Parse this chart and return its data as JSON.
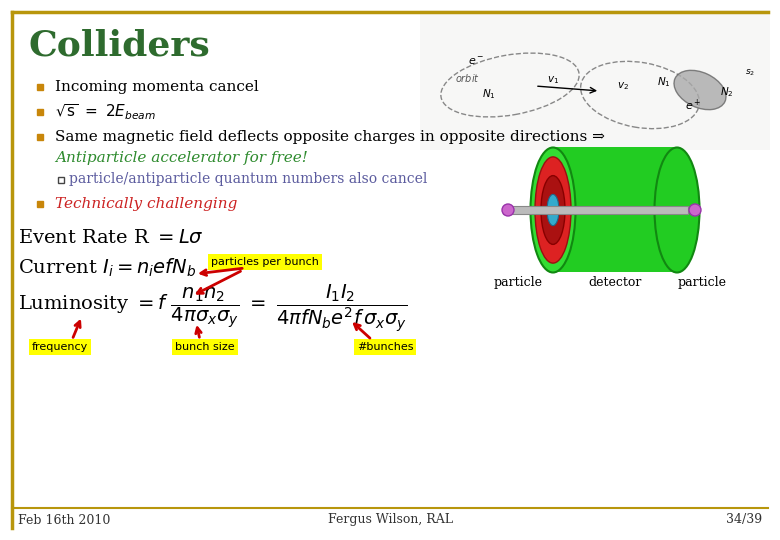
{
  "title": "Colliders",
  "title_color": "#2E6B2E",
  "title_fontsize": 26,
  "bg_color": "#FFFFFF",
  "border_color": "#B8960C",
  "bullet_color": "#C8860A",
  "bullet1": "Incoming momenta cancel",
  "bullet3": "Same magnetic field deflects opposite charges in opposite directions ⇒",
  "bullet3_italic": "Antiparticle accelerator for free!",
  "bullet3_green": "#2E8B2E",
  "sub_bullet": "particle/antiparticle quantum numbers also cancel",
  "sub_bullet_color": "#5B5B9E",
  "bullet4": "Technically challenging",
  "bullet4_color": "#CC2222",
  "footer_left": "Feb 16th 2010",
  "footer_center": "Fergus Wilson, RAL",
  "footer_right": "34/39",
  "footer_color": "#333333",
  "label_freq": "frequency",
  "label_ppb": "particles per bunch",
  "label_bunchsize": "bunch size",
  "label_nbunches": "#bunches",
  "yellow_bg": "#FFFF00",
  "arrow_color": "#CC0000",
  "text_color": "#000000"
}
